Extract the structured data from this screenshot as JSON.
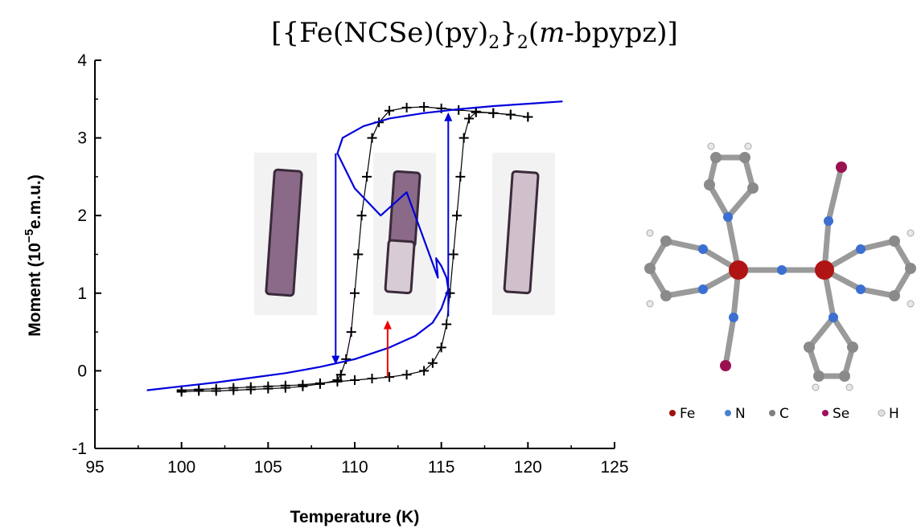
{
  "chart_data": {
    "type": "line",
    "title": {
      "open": "[{Fe(NCSe)(py)",
      "sub1": "2",
      "mid": "}",
      "sub2": "2",
      "paren_open": "(",
      "italic": "m",
      "rest": "-bpypz)]"
    },
    "xlabel": "Temperature (K)",
    "ylabel": {
      "main": "Moment (10",
      "exp": "−5",
      "unit": "e.m.u.)"
    },
    "xlim": [
      95,
      125
    ],
    "ylim": [
      -1,
      4
    ],
    "x_ticks": [
      95,
      100,
      105,
      110,
      115,
      120,
      125
    ],
    "y_ticks": [
      -1,
      0,
      1,
      2,
      3,
      4
    ],
    "x_tick_labels": [
      "95",
      "100",
      "105",
      "110",
      "115",
      "120",
      "125"
    ],
    "y_tick_labels": [
      "-1",
      "0",
      "1",
      "2",
      "3",
      "4"
    ],
    "grid": false,
    "series": [
      {
        "kind": "measured-heating",
        "color": "#000000",
        "marker": "plus",
        "points": [
          [
            100,
            -0.25
          ],
          [
            101,
            -0.24
          ],
          [
            102,
            -0.23
          ],
          [
            103,
            -0.22
          ],
          [
            104,
            -0.21
          ],
          [
            105,
            -0.2
          ],
          [
            106,
            -0.19
          ],
          [
            107,
            -0.18
          ],
          [
            108,
            -0.16
          ],
          [
            109,
            -0.14
          ],
          [
            110,
            -0.12
          ],
          [
            111,
            -0.1
          ],
          [
            112,
            -0.08
          ],
          [
            113,
            -0.05
          ],
          [
            114,
            0.0
          ],
          [
            114.5,
            0.1
          ],
          [
            115,
            0.3
          ],
          [
            115.3,
            0.6
          ],
          [
            115.5,
            1.0
          ],
          [
            115.7,
            1.5
          ],
          [
            115.9,
            2.0
          ],
          [
            116.1,
            2.5
          ],
          [
            116.3,
            3.0
          ],
          [
            116.6,
            3.25
          ],
          [
            117,
            3.33
          ],
          [
            118,
            3.32
          ],
          [
            119,
            3.3
          ],
          [
            120,
            3.27
          ]
        ]
      },
      {
        "kind": "measured-cooling",
        "color": "#000000",
        "marker": "plus",
        "points": [
          [
            120,
            3.27
          ],
          [
            119,
            3.3
          ],
          [
            118,
            3.32
          ],
          [
            117,
            3.34
          ],
          [
            116,
            3.36
          ],
          [
            115,
            3.38
          ],
          [
            114,
            3.4
          ],
          [
            113,
            3.39
          ],
          [
            112,
            3.35
          ],
          [
            111.4,
            3.2
          ],
          [
            111,
            3.0
          ],
          [
            110.7,
            2.5
          ],
          [
            110.4,
            2.0
          ],
          [
            110.2,
            1.5
          ],
          [
            110,
            1.0
          ],
          [
            109.8,
            0.5
          ],
          [
            109.5,
            0.15
          ],
          [
            109.2,
            -0.05
          ],
          [
            109,
            -0.12
          ],
          [
            108,
            -0.17
          ],
          [
            107,
            -0.2
          ],
          [
            106,
            -0.22
          ],
          [
            105,
            -0.23
          ],
          [
            104,
            -0.24
          ],
          [
            103,
            -0.25
          ],
          [
            102,
            -0.26
          ],
          [
            101,
            -0.26
          ],
          [
            100,
            -0.27
          ]
        ]
      },
      {
        "kind": "model-s-curve",
        "color": "#0000dd",
        "marker": "none",
        "points": [
          [
            98,
            -0.25
          ],
          [
            100,
            -0.2
          ],
          [
            102,
            -0.15
          ],
          [
            104,
            -0.09
          ],
          [
            106,
            -0.03
          ],
          [
            108,
            0.05
          ],
          [
            110,
            0.15
          ],
          [
            112,
            0.3
          ],
          [
            113.5,
            0.45
          ],
          [
            114.5,
            0.62
          ],
          [
            115,
            0.8
          ],
          [
            115.4,
            1.05
          ],
          [
            115.3,
            1.2
          ],
          [
            115,
            1.35
          ],
          [
            114.7,
            1.45
          ],
          [
            114.8,
            1.2
          ],
          [
            113,
            2.3
          ],
          [
            111.5,
            2.0
          ],
          [
            110,
            2.35
          ],
          [
            109,
            2.8
          ],
          [
            109.3,
            3.0
          ],
          [
            110.5,
            3.15
          ],
          [
            112,
            3.25
          ],
          [
            114,
            3.32
          ],
          [
            116,
            3.37
          ],
          [
            118,
            3.41
          ],
          [
            120,
            3.44
          ],
          [
            122,
            3.47
          ]
        ]
      }
    ],
    "annotations": [
      {
        "kind": "blue-arrow-down",
        "x": 108.9,
        "y_from": 2.8,
        "y_to": 0.08,
        "color": "#0000dd"
      },
      {
        "kind": "blue-arrow-up",
        "x": 115.4,
        "y_from": 0.7,
        "y_to": 3.33,
        "color": "#0000dd"
      },
      {
        "kind": "red-arrow-up",
        "x": 111.9,
        "y_from": -0.08,
        "y_to": 0.65,
        "color": "#ee0000"
      }
    ]
  },
  "legend": {
    "items": [
      {
        "label": "Fe",
        "color": "#a01010"
      },
      {
        "label": "N",
        "color": "#4a7fd0"
      },
      {
        "label": "C",
        "color": "#808080"
      },
      {
        "label": "Se",
        "color": "#a0105a"
      },
      {
        "label": "H",
        "color": "#e0e0e0"
      }
    ]
  },
  "colors": {
    "fe": "#b01414",
    "n": "#3b6fd1",
    "c": "#8a8a8a",
    "se": "#9a1050",
    "h": "#f0f0f0",
    "bond": "#9a9a9a"
  }
}
